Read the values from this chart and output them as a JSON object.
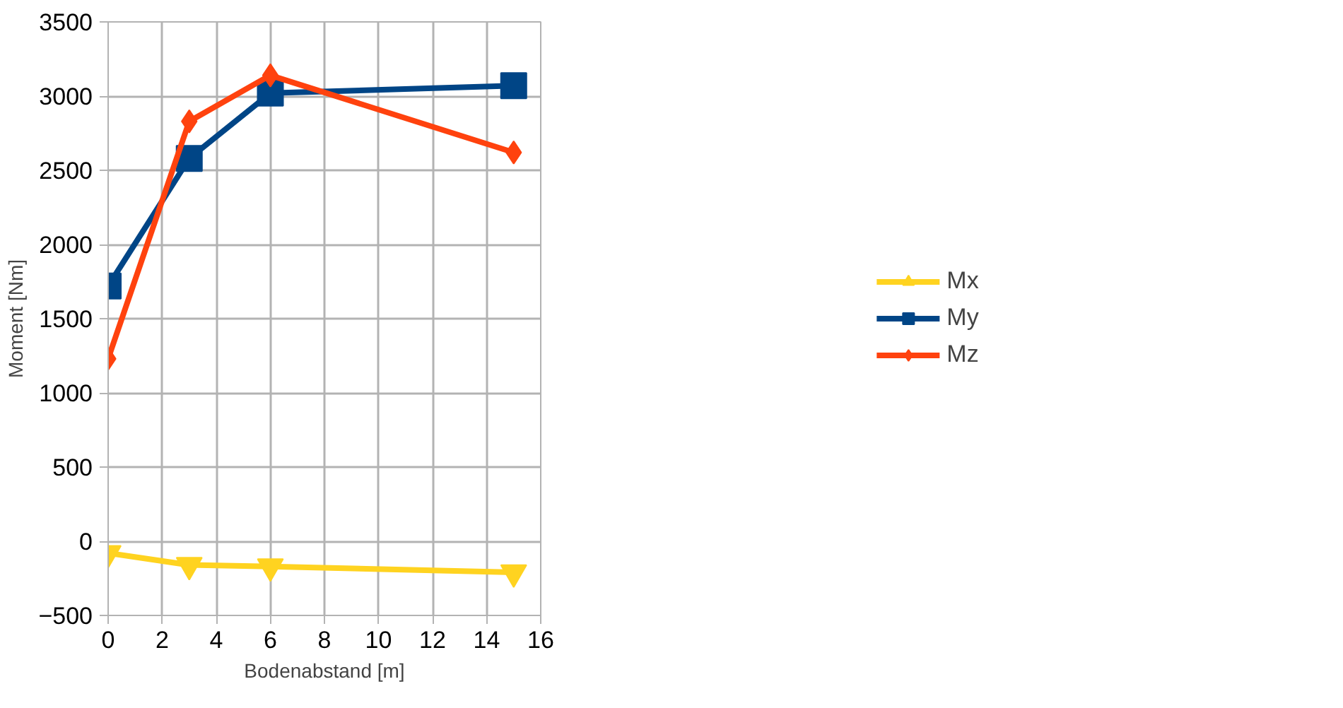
{
  "chart_data": {
    "type": "line",
    "xlabel": "Bodenabstand [m]",
    "ylabel": "Moment [Nm]",
    "x": [
      0,
      3,
      6,
      15
    ],
    "series": [
      {
        "name": "Mx",
        "color": "#ffd320",
        "marker": "triangle",
        "values": [
          -80,
          -160,
          -170,
          -210
        ]
      },
      {
        "name": "My",
        "color": "#004586",
        "marker": "square",
        "values": [
          1720,
          2580,
          3020,
          3070
        ]
      },
      {
        "name": "Mz",
        "color": "#ff420e",
        "marker": "diamond",
        "values": [
          1230,
          2830,
          3140,
          2620
        ]
      }
    ],
    "xlim": [
      0,
      16
    ],
    "xticks": [
      0,
      2,
      4,
      6,
      8,
      10,
      12,
      14,
      16
    ],
    "ylim": [
      -500,
      3500
    ],
    "yticks": [
      -500,
      0,
      500,
      1000,
      1500,
      2000,
      2500,
      3000,
      3500
    ],
    "grid": true,
    "legend": "right",
    "line_style": "solid"
  }
}
